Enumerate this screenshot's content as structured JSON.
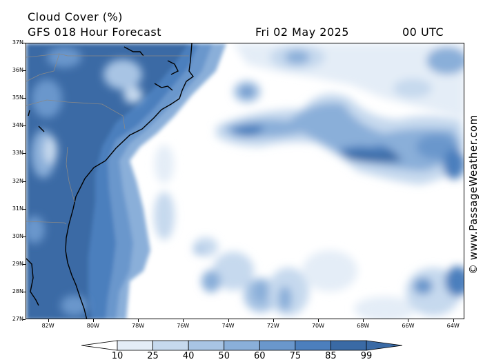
{
  "header": {
    "title": "Cloud Cover (%)",
    "subtitle": "GFS 018 Hour Forecast",
    "date": "Fri 02 May 2025",
    "time": "00 UTC"
  },
  "credit": "© www.PassageWeather.com",
  "map": {
    "latitude_labels": [
      "37N",
      "36N",
      "35N",
      "34N",
      "33N",
      "32N",
      "31N",
      "30N",
      "29N",
      "28N",
      "27N"
    ],
    "longitude_labels": [
      "82W",
      "80W",
      "78W",
      "76W",
      "74W",
      "72W",
      "70W",
      "68W",
      "66W",
      "64W"
    ],
    "lat_range": [
      27,
      37
    ],
    "lon_range": [
      -83,
      -63.5
    ],
    "colors": {
      "c10": "#ffffff",
      "c25": "#e4edf7",
      "c40": "#c6d9ee",
      "c50": "#a8c4e4",
      "c60": "#8aafd9",
      "c75": "#6a97cc",
      "c85": "#4c7fbd",
      "c99": "#3a6aa5"
    },
    "cloud_cells": [
      {
        "lon": -82,
        "lat": 35,
        "level": 85
      },
      {
        "lon": -81,
        "lat": 33,
        "level": 75
      },
      {
        "lon": -80,
        "lat": 30,
        "level": 85
      },
      {
        "lon": -73.5,
        "lat": 33.5,
        "level": 85
      },
      {
        "lon": -67,
        "lat": 32.8,
        "level": 85
      },
      {
        "lon": -64,
        "lat": 34,
        "level": 75
      },
      {
        "lon": -74,
        "lat": 28,
        "level": 60
      },
      {
        "lon": -64.5,
        "lat": 28,
        "level": 75
      }
    ]
  },
  "colorbar": {
    "labels": [
      "10",
      "25",
      "40",
      "50",
      "60",
      "75",
      "85",
      "99"
    ],
    "colors": [
      "#ffffff",
      "#e4edf7",
      "#c6d9ee",
      "#a8c4e4",
      "#8aafd9",
      "#6a97cc",
      "#4c7fbd",
      "#3a6aa5"
    ]
  }
}
